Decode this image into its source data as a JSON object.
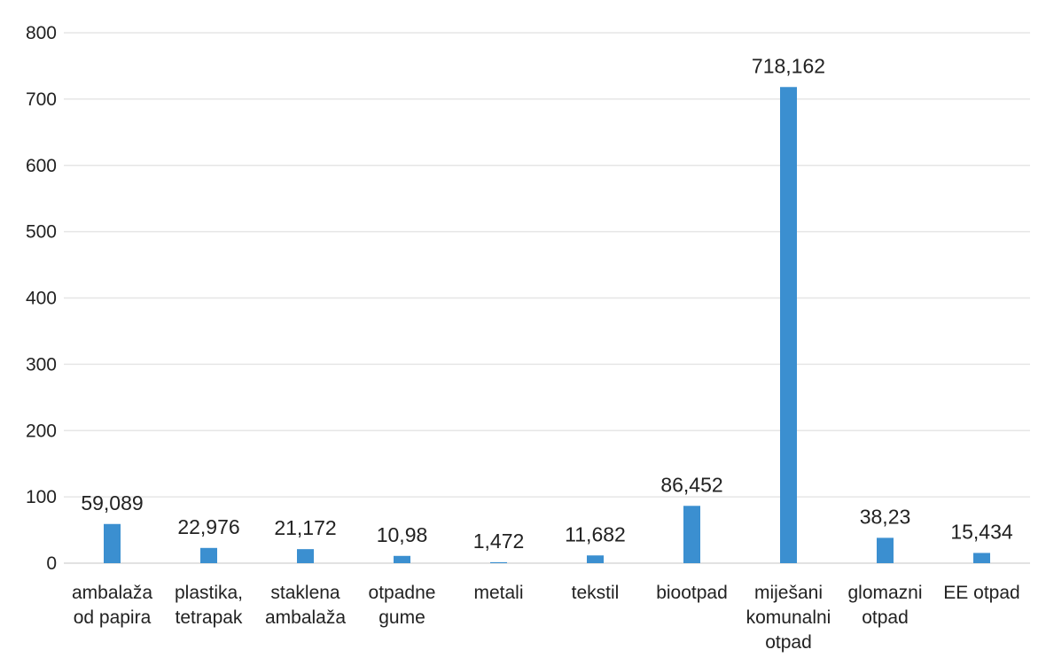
{
  "chart_data": {
    "type": "bar",
    "categories": [
      [
        "ambalaža",
        "od papira"
      ],
      [
        "plastika,",
        "tetrapak"
      ],
      [
        "staklena",
        "ambalaža"
      ],
      [
        "otpadne",
        "gume"
      ],
      [
        "metali"
      ],
      [
        "tekstil"
      ],
      [
        "biootpad"
      ],
      [
        "miješani",
        "komunalni",
        "otpad"
      ],
      [
        "glomazni",
        "otpad"
      ],
      [
        "EE otpad"
      ]
    ],
    "values": [
      59.089,
      22.976,
      21.172,
      10.98,
      1.472,
      11.682,
      86.452,
      718.162,
      38.23,
      15.434
    ],
    "data_labels": [
      "59,089",
      "22,976",
      "21,172",
      "10,98",
      "1,472",
      "11,682",
      "86,452",
      "718,162",
      "38,23",
      "15,434"
    ],
    "yticks": [
      0,
      100,
      200,
      300,
      400,
      500,
      600,
      700,
      800
    ],
    "ylim": [
      0,
      800
    ],
    "grid": true,
    "bar_color": "#3b8fd0",
    "title": "",
    "xlabel": "",
    "ylabel": ""
  }
}
